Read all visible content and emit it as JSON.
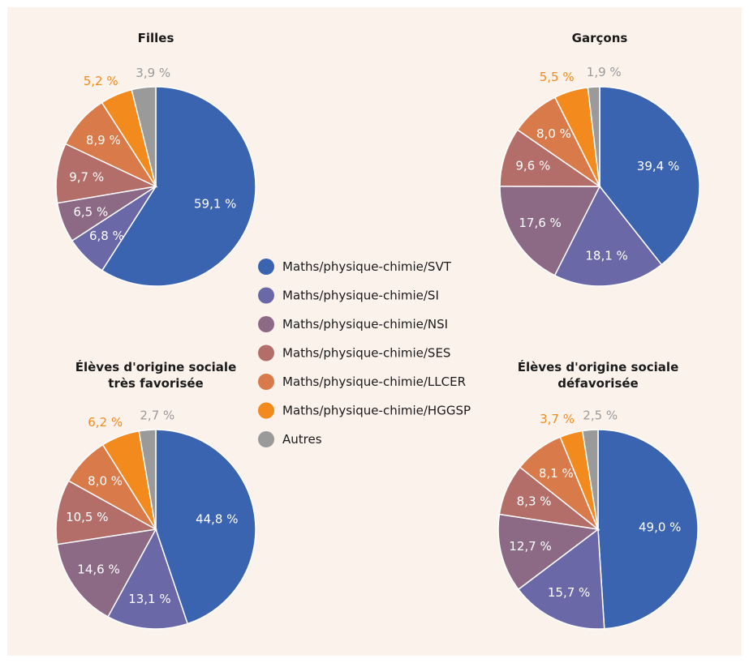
{
  "chart_data": {
    "type": "pie",
    "categories": [
      "Maths/physique-chimie/SVT",
      "Maths/physique-chimie/SI",
      "Maths/physique-chimie/NSI",
      "Maths/physique-chimie/SES",
      "Maths/physique-chimie/LLCER",
      "Maths/physique-chimie/HGGSP",
      "Autres"
    ],
    "colors": [
      "#3a63b0",
      "#6a68a6",
      "#8c6a86",
      "#b36e6a",
      "#d87a4a",
      "#f28a1e",
      "#9a9a9a"
    ],
    "legend_position": "center",
    "pies": [
      {
        "title_lines": [
          "Filles"
        ],
        "values": [
          59.1,
          6.8,
          6.5,
          9.7,
          8.9,
          5.2,
          3.9
        ],
        "labels": [
          "59,1 %",
          "6,8 %",
          "6,5 %",
          "9,7 %",
          "8,9 %",
          "5,2 %",
          "3,9 %"
        ]
      },
      {
        "title_lines": [
          "Garçons"
        ],
        "values": [
          39.4,
          18.1,
          17.6,
          9.6,
          8.0,
          5.5,
          1.9
        ],
        "labels": [
          "39,4 %",
          "18,1 %",
          "17,6 %",
          "9,6 %",
          "8,0 %",
          "5,5 %",
          "1,9 %"
        ]
      },
      {
        "title_lines": [
          "Élèves d'origine sociale",
          "très favorisée"
        ],
        "values": [
          44.8,
          13.1,
          14.6,
          10.5,
          8.0,
          6.2,
          2.7
        ],
        "labels": [
          "44,8 %",
          "13,1 %",
          "14,6 %",
          "10,5 %",
          "8,0 %",
          "6,2 %",
          "2,7 %"
        ]
      },
      {
        "title_lines": [
          "Élèves d'origine sociale",
          "défavorisée"
        ],
        "values": [
          49.0,
          15.7,
          12.7,
          8.3,
          8.1,
          3.7,
          2.5
        ],
        "labels": [
          "49,0 %",
          "15,7 %",
          "12,7 %",
          "8,3 %",
          "8,1 %",
          "3,7 %",
          "2,5 %"
        ]
      }
    ]
  }
}
